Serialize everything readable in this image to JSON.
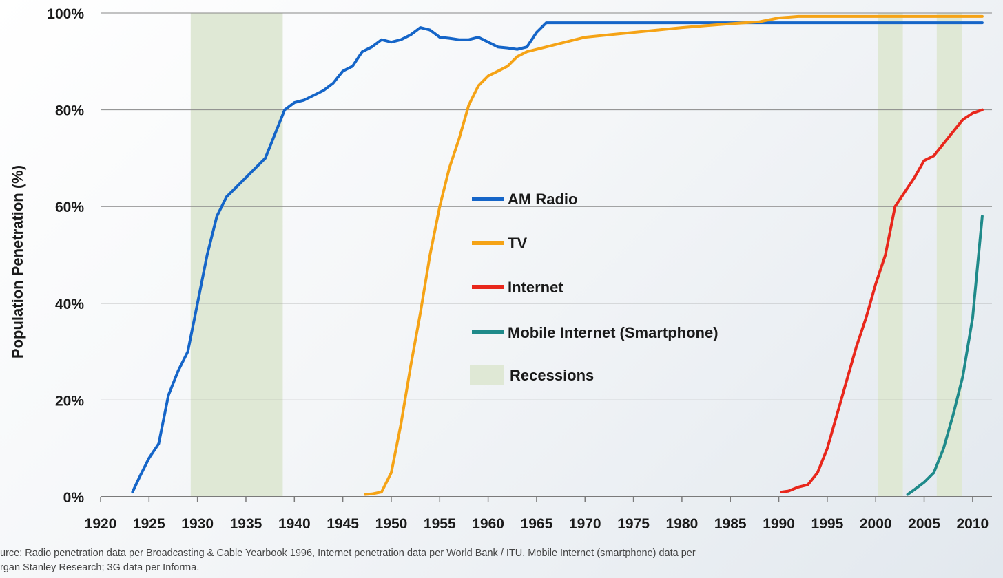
{
  "chart_data": {
    "type": "line",
    "title": "",
    "xlabel": "",
    "ylabel": "Population Penetration (%)",
    "xlim": [
      1920,
      2012
    ],
    "ylim": [
      0,
      100
    ],
    "x_ticks": [
      "1920",
      "1925",
      "1930",
      "1935",
      "1940",
      "1945",
      "1950",
      "1955",
      "1960",
      "1965",
      "1970",
      "1975",
      "1980",
      "1985",
      "1990",
      "1995",
      "2000",
      "2005",
      "2010"
    ],
    "y_ticks": [
      "0%",
      "20%",
      "40%",
      "60%",
      "80%",
      "100%"
    ],
    "grid": true,
    "legend_position": "center",
    "recessions": [
      [
        1929.3,
        1938.8
      ],
      [
        2000.2,
        2002.8
      ],
      [
        2006.3,
        2008.9
      ]
    ],
    "series": [
      {
        "name": "AM Radio",
        "color": "#1565c8",
        "points": [
          [
            1923.3,
            1
          ],
          [
            1924,
            4
          ],
          [
            1925,
            8
          ],
          [
            1926,
            11
          ],
          [
            1927,
            21
          ],
          [
            1928,
            26
          ],
          [
            1929,
            30
          ],
          [
            1930,
            40
          ],
          [
            1931,
            50
          ],
          [
            1932,
            58
          ],
          [
            1933,
            62
          ],
          [
            1934,
            64
          ],
          [
            1935,
            66
          ],
          [
            1936,
            68
          ],
          [
            1937,
            70
          ],
          [
            1938,
            75
          ],
          [
            1939,
            80
          ],
          [
            1940,
            81.5
          ],
          [
            1941,
            82
          ],
          [
            1942,
            83
          ],
          [
            1943,
            84
          ],
          [
            1944,
            85.5
          ],
          [
            1945,
            88
          ],
          [
            1946,
            89
          ],
          [
            1947,
            92
          ],
          [
            1948,
            93
          ],
          [
            1949,
            94.5
          ],
          [
            1950,
            94
          ],
          [
            1951,
            94.5
          ],
          [
            1952,
            95.5
          ],
          [
            1953,
            97
          ],
          [
            1954,
            96.5
          ],
          [
            1955,
            95
          ],
          [
            1956,
            94.8
          ],
          [
            1957,
            94.5
          ],
          [
            1958,
            94.5
          ],
          [
            1959,
            95
          ],
          [
            1960,
            94
          ],
          [
            1961,
            93
          ],
          [
            1962,
            92.8
          ],
          [
            1963,
            92.5
          ],
          [
            1964,
            93
          ],
          [
            1965,
            96
          ],
          [
            1966,
            98
          ],
          [
            1970,
            98
          ],
          [
            1980,
            98
          ],
          [
            1990,
            98
          ],
          [
            2000,
            98
          ],
          [
            2011,
            98
          ]
        ]
      },
      {
        "name": "TV",
        "color": "#f5a316",
        "points": [
          [
            1947.3,
            0.5
          ],
          [
            1948,
            0.6
          ],
          [
            1949,
            1
          ],
          [
            1950,
            5
          ],
          [
            1951,
            15
          ],
          [
            1952,
            27
          ],
          [
            1953,
            38
          ],
          [
            1954,
            50
          ],
          [
            1955,
            60
          ],
          [
            1956,
            68
          ],
          [
            1957,
            74
          ],
          [
            1958,
            81
          ],
          [
            1959,
            85
          ],
          [
            1960,
            87
          ],
          [
            1961,
            88
          ],
          [
            1962,
            89
          ],
          [
            1963,
            91
          ],
          [
            1964,
            92
          ],
          [
            1965,
            92.5
          ],
          [
            1966,
            93
          ],
          [
            1970,
            95
          ],
          [
            1975,
            96
          ],
          [
            1980,
            97
          ],
          [
            1985,
            97.8
          ],
          [
            1988,
            98.2
          ],
          [
            1990,
            99
          ],
          [
            1992,
            99.3
          ],
          [
            2000,
            99.3
          ],
          [
            2011,
            99.3
          ]
        ]
      },
      {
        "name": "Internet",
        "color": "#e8271c",
        "points": [
          [
            1990.3,
            1
          ],
          [
            1991,
            1.2
          ],
          [
            1992,
            2
          ],
          [
            1993,
            2.5
          ],
          [
            1994,
            5
          ],
          [
            1995,
            10
          ],
          [
            1996,
            17
          ],
          [
            1997,
            24
          ],
          [
            1998,
            31
          ],
          [
            1999,
            37
          ],
          [
            2000,
            44
          ],
          [
            2001,
            50
          ],
          [
            2002,
            60
          ],
          [
            2003,
            63
          ],
          [
            2004,
            66
          ],
          [
            2005,
            69.5
          ],
          [
            2006,
            70.5
          ],
          [
            2007,
            73
          ],
          [
            2008,
            75.5
          ],
          [
            2009,
            78
          ],
          [
            2010,
            79.3
          ],
          [
            2011,
            80
          ]
        ]
      },
      {
        "name": "Mobile Internet (Smartphone)",
        "color": "#1f8a8a",
        "points": [
          [
            2003.3,
            0.5
          ],
          [
            2004,
            1.5
          ],
          [
            2005,
            3
          ],
          [
            2006,
            5
          ],
          [
            2007,
            10
          ],
          [
            2008,
            17
          ],
          [
            2009,
            25
          ],
          [
            2010,
            37
          ],
          [
            2011,
            58
          ]
        ]
      }
    ],
    "legend": [
      {
        "label": "AM Radio",
        "kind": "line",
        "color": "#1565c8"
      },
      {
        "label": "TV",
        "kind": "line",
        "color": "#f5a316"
      },
      {
        "label": "Internet",
        "kind": "line",
        "color": "#e8271c"
      },
      {
        "label": "Mobile Internet (Smartphone)",
        "kind": "line",
        "color": "#1f8a8a"
      },
      {
        "label": "Recessions",
        "kind": "patch",
        "color": "#dfe8d5"
      }
    ],
    "grid_color": "#888888",
    "axis_color": "#7a7a7a",
    "recession_color": "#dfe8d5"
  },
  "source": {
    "line1": "urce: Radio penetration data per Broadcasting & Cable Yearbook 1996, Internet penetration data per World Bank / ITU, Mobile Internet (smartphone) data per",
    "line2": "rgan Stanley Research; 3G data per Informa."
  }
}
